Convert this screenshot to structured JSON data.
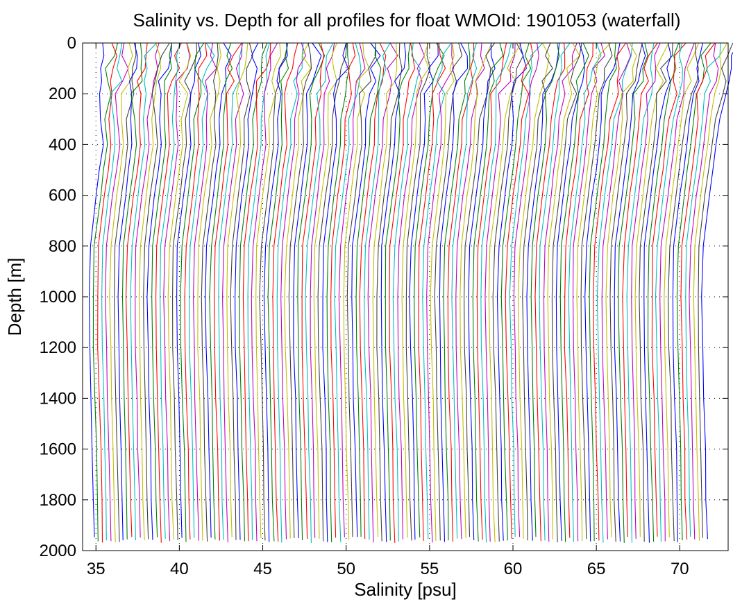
{
  "chart_data": {
    "type": "line",
    "title": "Salinity vs. Depth for all profiles for float WMOId: 1901053 (waterfall)",
    "xlabel": "Salinity [psu]",
    "ylabel": "Depth [m]",
    "xlim": [
      34.2,
      72.9
    ],
    "ylim": [
      0,
      2000
    ],
    "y_reversed": true,
    "xticks": [
      35,
      40,
      45,
      50,
      55,
      60,
      65,
      70
    ],
    "yticks": [
      0,
      200,
      400,
      600,
      800,
      1000,
      1200,
      1400,
      1600,
      1800,
      2000
    ],
    "grid": "dotted",
    "series_colors": [
      "#0000ff",
      "#008000",
      "#ff0000",
      "#00bfbf",
      "#bf00bf",
      "#bfbf00",
      "#404040"
    ],
    "waterfall": {
      "profile_count": 148,
      "offset_step": 0.25,
      "first_profile_bottom_salinity": 34.9,
      "profile_shape_depth": [
        0,
        50,
        100,
        150,
        200,
        300,
        400,
        500,
        600,
        800,
        1000,
        1200,
        1400,
        1600,
        1800,
        1970
      ],
      "profile_shape_salinity_anomaly": [
        1.55,
        1.45,
        1.3,
        1.1,
        0.95,
        0.72,
        0.52,
        0.32,
        0.12,
        -0.25,
        -0.32,
        -0.28,
        -0.2,
        -0.12,
        -0.06,
        0.0
      ]
    }
  }
}
